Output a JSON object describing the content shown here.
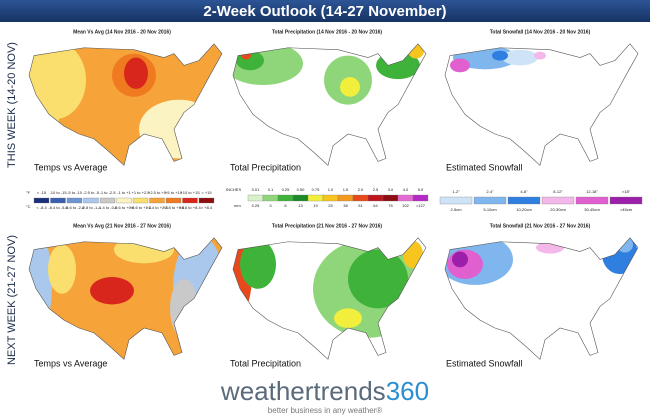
{
  "header": {
    "title": "2-Week Outlook (14-27 November)"
  },
  "rows": [
    {
      "label": "THIS WEEK (14-20 NOV)",
      "panels": [
        {
          "title": "Mean Vs Avg (14 Nov 2016 - 20 Nov 2016)",
          "caption": "Temps vs Average"
        },
        {
          "title": "Total Precipitation (14 Nov 2016 - 20 Nov 2016)",
          "caption": "Total Precipitation"
        },
        {
          "title": "Total Snowfall (14 Nov 2016 - 20 Nov 2016)",
          "caption": "Estimated Snowfall"
        }
      ]
    },
    {
      "label": "NEXT WEEK (21-27 NOV)",
      "panels": [
        {
          "title": "Mean Vs Avg (21 Nov 2016 - 27 Nov 2016)",
          "caption": "Temps vs Average"
        },
        {
          "title": "Total Precipitation (21 Nov 2016 - 27 Nov 2016)",
          "caption": "Total Precipitation"
        },
        {
          "title": "Total Snowfall (21 Nov 2016 - 27 Nov 2016)",
          "caption": "Estimated Snowfall"
        }
      ]
    }
  ],
  "temp_legend": {
    "unit_top": "°F",
    "unit_bottom": "°C",
    "top": [
      "< -15",
      "-10 to -15",
      "-5 to -10",
      "-2.5 to -5",
      "-1 to -2.5",
      "-1 to +1",
      "+1 to +2.5",
      "+2.5 to +5",
      "+5 to +10",
      "+10 to +15",
      "> +15"
    ],
    "bottom": [
      "< -8.4",
      "-8.4 to -5.6",
      "-5.6 to -2.8",
      "-2.8 to -1.4",
      "-1.4 to -0.6",
      "-0.6 to +0.6",
      "+0.6 to +1.4",
      "+1.4 to +2.8",
      "+2.8 to +5.6",
      "+5.6 to +8.4",
      "> +8.4"
    ],
    "colors": [
      "#1b2f7a",
      "#3a5fb0",
      "#6d95d2",
      "#a9c8ec",
      "#c9c9c9",
      "#fbf3c2",
      "#fadf6e",
      "#f6a43a",
      "#ef7a1f",
      "#d8261c",
      "#8e0f10"
    ]
  },
  "precip_legend": {
    "unit_top": "INCHES",
    "unit_bottom": "mm",
    "top": [
      "0.01",
      "0.1",
      "0.25",
      "0.50",
      "0.75",
      "1.0",
      "1.5",
      "2.0",
      "2.5",
      "3.0",
      "4.0",
      "5.0"
    ],
    "bottom": [
      "0.25",
      "3",
      "6",
      "13",
      "19",
      "25",
      "38",
      "51",
      "64",
      "76",
      "102",
      ">127"
    ],
    "colors": [
      "#d7f2c9",
      "#8fd67a",
      "#3fb23a",
      "#1d8a2a",
      "#f1ef3c",
      "#f7c51e",
      "#f49a1d",
      "#e8491c",
      "#c0161b",
      "#8c0d14",
      "#e66ad3",
      "#b42ac7"
    ]
  },
  "snow_legend": {
    "top": [
      "1-2\"",
      "2-4\"",
      "4-8\"",
      "8-12\"",
      "12-18\"",
      ">18\""
    ],
    "bottom": [
      "2-5cm",
      "5-10cm",
      "10-20cm",
      "20-30cm",
      "30-45cm",
      ">45cm"
    ],
    "colors": [
      "#cfe3f7",
      "#7fb6ee",
      "#2f7fe0",
      "#f4b7ea",
      "#e060d0",
      "#9b1fa9"
    ]
  },
  "footer": {
    "brand": [
      "weathertrends",
      "360"
    ],
    "tagline": "better business in any weather®"
  }
}
